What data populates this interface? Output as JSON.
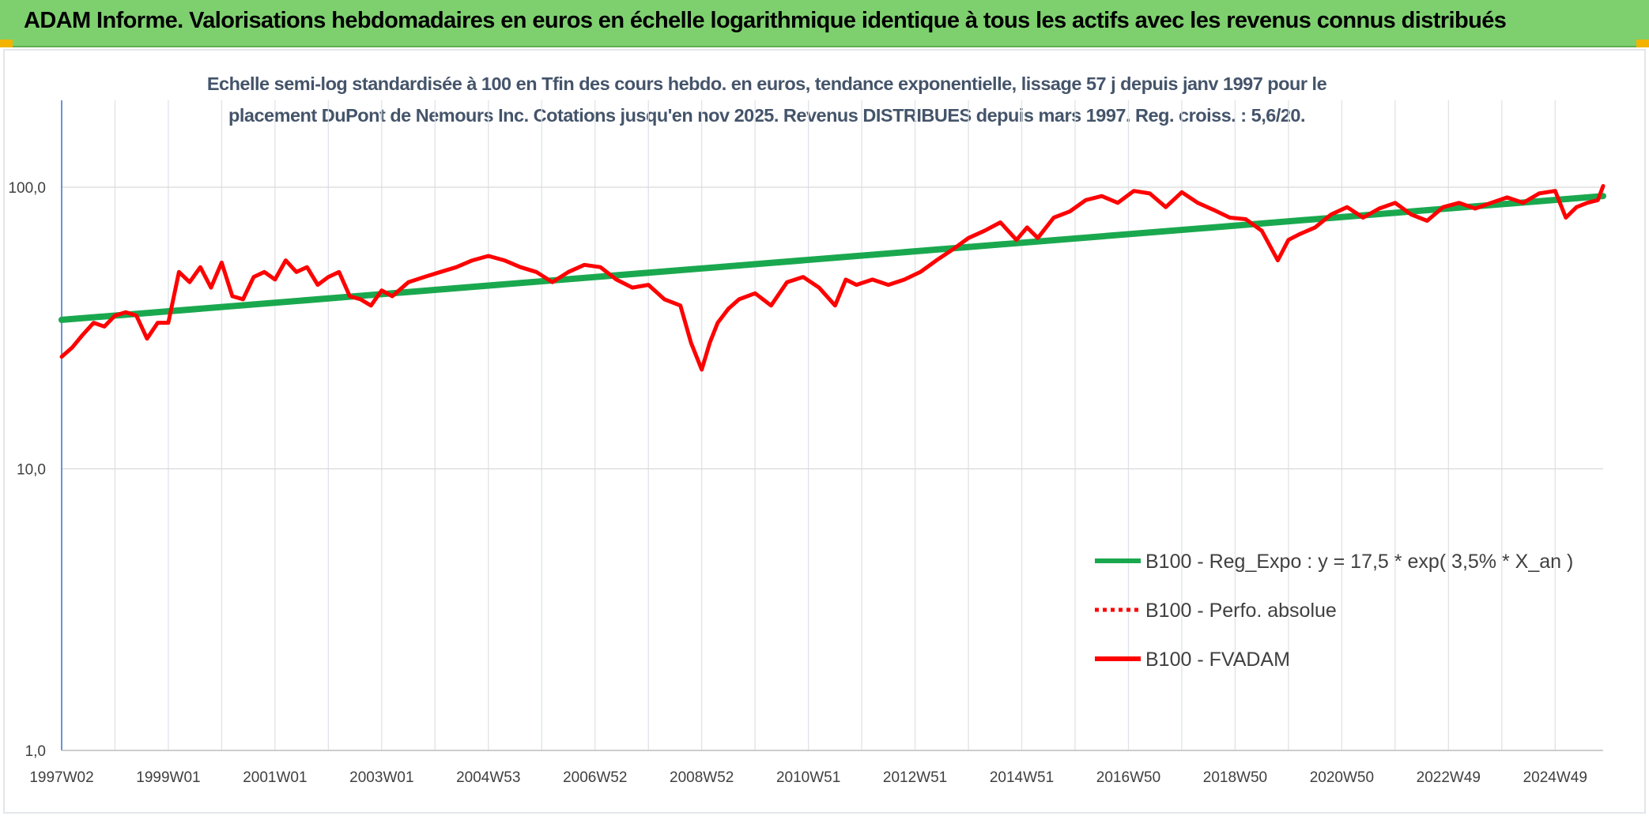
{
  "header": {
    "title": "ADAM Informe. Valorisations hebdomadaires en euros en échelle logarithmique identique à tous les actifs avec les revenus connus distribués"
  },
  "chart_data": {
    "type": "line",
    "title_lines": [
      "Echelle semi-log standardisée à 100 en Tfin des cours hebdo. en euros, tendance exponentielle, lissage 57 j depuis janv 1997 pour le",
      "placement DuPont de Nemours Inc. Cotations jusqu'en nov 2025. Revenus DISTRIBUES depuis mars 1997. Reg. croiss. : 5,6/20."
    ],
    "y_scale": "log",
    "ylim": [
      1,
      100
    ],
    "y_ticks": [
      {
        "value": 100,
        "label": "100,0"
      },
      {
        "value": 10,
        "label": "10,0"
      },
      {
        "value": 1,
        "label": "1,0"
      }
    ],
    "xlim": [
      1997.0,
      2025.9
    ],
    "x_ticks": [
      {
        "value": 1997.0,
        "label": "1997W02"
      },
      {
        "value": 1999.0,
        "label": "1999W01"
      },
      {
        "value": 2001.0,
        "label": "2001W01"
      },
      {
        "value": 2003.0,
        "label": "2003W01"
      },
      {
        "value": 2005.0,
        "label": "2004W53"
      },
      {
        "value": 2007.0,
        "label": "2006W52"
      },
      {
        "value": 2009.0,
        "label": "2008W52"
      },
      {
        "value": 2011.0,
        "label": "2010W51"
      },
      {
        "value": 2013.0,
        "label": "2012W51"
      },
      {
        "value": 2015.0,
        "label": "2014W51"
      },
      {
        "value": 2017.0,
        "label": "2016W50"
      },
      {
        "value": 2019.0,
        "label": "2018W50"
      },
      {
        "value": 2021.0,
        "label": "2020W50"
      },
      {
        "value": 2023.0,
        "label": "2022W49"
      },
      {
        "value": 2025.0,
        "label": "2024W49"
      }
    ],
    "grid": true,
    "legend_position": "bottom-right",
    "series": [
      {
        "name": "B100 - Reg_Expo : y = 17,5 * exp( 3,5% *  X_an )",
        "color": "#1aa84f",
        "style": "solid",
        "x": [
          1997.0,
          2025.9
        ],
        "y": [
          33.8,
          93.0
        ]
      },
      {
        "name": "B100 - Perfo. absolue",
        "color": "#ff0000",
        "style": "dotted",
        "x": [],
        "y": []
      },
      {
        "name": "B100 - FVADAM",
        "color": "#ff0000",
        "style": "solid",
        "x": [
          1997.0,
          1997.2,
          1997.4,
          1997.6,
          1997.8,
          1998.0,
          1998.2,
          1998.4,
          1998.6,
          1998.8,
          1999.0,
          1999.2,
          1999.4,
          1999.6,
          1999.8,
          2000.0,
          2000.2,
          2000.4,
          2000.6,
          2000.8,
          2001.0,
          2001.2,
          2001.4,
          2001.6,
          2001.8,
          2002.0,
          2002.2,
          2002.4,
          2002.6,
          2002.8,
          2003.0,
          2003.2,
          2003.5,
          2003.8,
          2004.1,
          2004.4,
          2004.7,
          2005.0,
          2005.3,
          2005.6,
          2005.9,
          2006.2,
          2006.5,
          2006.8,
          2007.1,
          2007.4,
          2007.7,
          2008.0,
          2008.3,
          2008.6,
          2008.8,
          2009.0,
          2009.15,
          2009.3,
          2009.5,
          2009.7,
          2010.0,
          2010.3,
          2010.6,
          2010.9,
          2011.2,
          2011.5,
          2011.7,
          2011.9,
          2012.2,
          2012.5,
          2012.8,
          2013.1,
          2013.4,
          2013.7,
          2014.0,
          2014.3,
          2014.6,
          2014.9,
          2015.1,
          2015.3,
          2015.6,
          2015.9,
          2016.2,
          2016.5,
          2016.8,
          2017.1,
          2017.4,
          2017.7,
          2018.0,
          2018.3,
          2018.6,
          2018.9,
          2019.2,
          2019.5,
          2019.8,
          2020.0,
          2020.2,
          2020.5,
          2020.8,
          2021.1,
          2021.4,
          2021.7,
          2022.0,
          2022.3,
          2022.6,
          2022.9,
          2023.2,
          2023.5,
          2023.8,
          2024.1,
          2024.4,
          2024.7,
          2025.0,
          2025.2,
          2025.4,
          2025.6,
          2025.8,
          2025.9
        ],
        "y": [
          25,
          27,
          30,
          33,
          32,
          35,
          36,
          35,
          29,
          33,
          33,
          50,
          46,
          52,
          44,
          54,
          41,
          40,
          48,
          50,
          47,
          55,
          50,
          52,
          45,
          48,
          50,
          41,
          40,
          38,
          43,
          41,
          46,
          48,
          50,
          52,
          55,
          57,
          55,
          52,
          50,
          46,
          50,
          53,
          52,
          47,
          44,
          45,
          40,
          38,
          28,
          22.5,
          28,
          33,
          37,
          40,
          42,
          38,
          46,
          48,
          44,
          38,
          47,
          45,
          47,
          45,
          47,
          50,
          55,
          60,
          66,
          70,
          75,
          65,
          72,
          66,
          78,
          82,
          90,
          93,
          88,
          97,
          95,
          85,
          96,
          88,
          83,
          78,
          77,
          70,
          55,
          65,
          68,
          72,
          80,
          85,
          78,
          84,
          88,
          80,
          76,
          85,
          88,
          84,
          88,
          92,
          88,
          95,
          97,
          78,
          85,
          88,
          90,
          101
        ]
      }
    ]
  }
}
